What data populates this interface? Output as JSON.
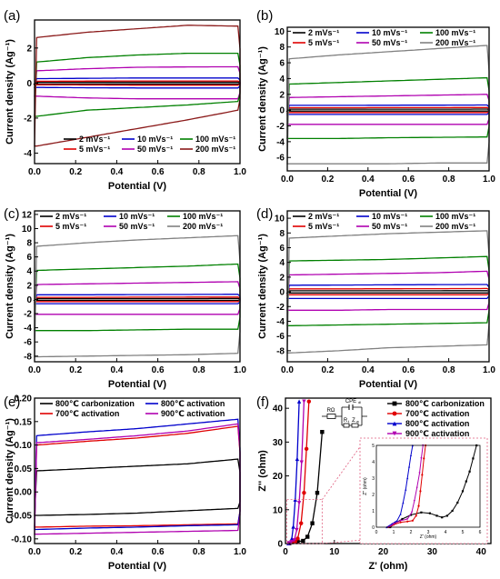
{
  "chart_data": [
    {
      "panel": "(a)",
      "type": "line",
      "xlabel": "Potential (V)",
      "ylabel": "Current density (Ag⁻¹)",
      "xlim": [
        0,
        1
      ],
      "ylim": [
        -4.6,
        3.6
      ],
      "xticks": [
        "0.0",
        "0.2",
        "0.4",
        "0.6",
        "0.8",
        "1.0"
      ],
      "yticks": [
        {
          "v": -4,
          "l": "-4"
        },
        {
          "v": -2,
          "l": "-2"
        },
        {
          "v": 0,
          "l": "0"
        },
        {
          "v": 2,
          "l": "2"
        }
      ],
      "legend_position": "bottom-right",
      "legend_cols": 3,
      "series": [
        {
          "name": "2 mVs⁻¹",
          "color": "#000000",
          "top": [
            0.05,
            0.05,
            0.05,
            0.05,
            0.05
          ],
          "bot": [
            -0.05,
            -0.05,
            -0.05,
            -0.05,
            -0.05
          ]
        },
        {
          "name": "5 mVs⁻¹",
          "color": "#e00000",
          "top": [
            0.1,
            0.11,
            0.12,
            0.12,
            0.12
          ],
          "bot": [
            -0.1,
            -0.11,
            -0.12,
            -0.12,
            -0.12
          ]
        },
        {
          "name": "10 mVs⁻¹",
          "color": "#0000cc",
          "top": [
            0.25,
            0.27,
            0.29,
            0.29,
            0.29
          ],
          "bot": [
            -0.25,
            -0.27,
            -0.28,
            -0.28,
            -0.28
          ]
        },
        {
          "name": "50 mVs⁻¹",
          "color": "#b000b0",
          "top": [
            0.7,
            0.82,
            0.9,
            0.92,
            0.93
          ],
          "bot": [
            -0.75,
            -0.85,
            -0.9,
            -0.9,
            -0.9
          ]
        },
        {
          "name": "100 mVs⁻¹",
          "color": "#008000",
          "top": [
            1.2,
            1.45,
            1.6,
            1.7,
            1.7
          ],
          "bot": [
            -1.9,
            -1.55,
            -1.4,
            -1.25,
            -1.05
          ]
        },
        {
          "name": "200 mVs⁻¹",
          "color": "#8b1a1a",
          "top": [
            2.6,
            2.9,
            3.1,
            3.3,
            3.25
          ],
          "bot": [
            -3.6,
            -3.1,
            -2.6,
            -2.1,
            -1.55
          ]
        }
      ]
    },
    {
      "panel": "(b)",
      "type": "line",
      "xlabel": "Potential (V)",
      "ylabel": "Current density (Ag⁻¹)",
      "xlim": [
        0,
        1
      ],
      "ylim": [
        -7.7,
        10.5
      ],
      "xticks": [
        "0.0",
        "0.2",
        "0.4",
        "0.6",
        "0.8",
        "1.0"
      ],
      "yticks": [
        {
          "v": -6,
          "l": "-6"
        },
        {
          "v": -4,
          "l": "-4"
        },
        {
          "v": -2,
          "l": "-2"
        },
        {
          "v": 0,
          "l": "0"
        },
        {
          "v": 2,
          "l": "2"
        },
        {
          "v": 4,
          "l": "4"
        },
        {
          "v": 6,
          "l": "6"
        },
        {
          "v": 8,
          "l": "8"
        },
        {
          "v": 10,
          "l": "10"
        }
      ],
      "legend_position": "top",
      "legend_cols": 3,
      "series": [
        {
          "name": "2 mVs⁻¹",
          "color": "#000000",
          "top": [
            0.12,
            0.12,
            0.12,
            0.12,
            0.13
          ],
          "bot": [
            -0.12,
            -0.12,
            -0.12,
            -0.12,
            -0.12
          ]
        },
        {
          "name": "5 mVs⁻¹",
          "color": "#e00000",
          "top": [
            0.3,
            0.3,
            0.32,
            0.32,
            0.33
          ],
          "bot": [
            -0.3,
            -0.3,
            -0.3,
            -0.3,
            -0.3
          ]
        },
        {
          "name": "10 mVs⁻¹",
          "color": "#0000cc",
          "top": [
            0.6,
            0.6,
            0.62,
            0.63,
            0.65
          ],
          "bot": [
            -0.55,
            -0.55,
            -0.55,
            -0.55,
            -0.55
          ]
        },
        {
          "name": "50 mVs⁻¹",
          "color": "#b000b0",
          "top": [
            1.6,
            1.7,
            1.8,
            1.9,
            2.0
          ],
          "bot": [
            -1.8,
            -1.8,
            -1.8,
            -1.8,
            -1.8
          ]
        },
        {
          "name": "100 mVs⁻¹",
          "color": "#008000",
          "top": [
            3.3,
            3.5,
            3.7,
            3.9,
            4.1
          ],
          "bot": [
            -3.6,
            -3.6,
            -3.5,
            -3.45,
            -3.4
          ]
        },
        {
          "name": "200 mVs⁻¹",
          "color": "#808080",
          "top": [
            6.5,
            7.0,
            7.4,
            7.8,
            8.2
          ],
          "bot": [
            -6.8,
            -6.8,
            -6.8,
            -6.7,
            -6.7
          ]
        }
      ]
    },
    {
      "panel": "(c)",
      "type": "line",
      "xlabel": "Potential (V)",
      "ylabel": "Current density (Ag⁻¹)",
      "xlim": [
        0,
        1
      ],
      "ylim": [
        -8.8,
        12.5
      ],
      "xticks": [
        "0.0",
        "0.2",
        "0.4",
        "0.6",
        "0.8",
        "1.0"
      ],
      "yticks": [
        {
          "v": -8,
          "l": "-8"
        },
        {
          "v": -6,
          "l": "-6"
        },
        {
          "v": -4,
          "l": "-4"
        },
        {
          "v": -2,
          "l": "-2"
        },
        {
          "v": 0,
          "l": "0"
        },
        {
          "v": 2,
          "l": "2"
        },
        {
          "v": 4,
          "l": "4"
        },
        {
          "v": 6,
          "l": "6"
        },
        {
          "v": 8,
          "l": "8"
        },
        {
          "v": 10,
          "l": "10"
        },
        {
          "v": 12,
          "l": "12"
        }
      ],
      "legend_position": "top",
      "legend_cols": 3,
      "series": [
        {
          "name": "2 mVs⁻¹",
          "color": "#000000",
          "top": [
            0.12,
            0.12,
            0.12,
            0.12,
            0.13
          ],
          "bot": [
            -0.12,
            -0.12,
            -0.12,
            -0.12,
            -0.12
          ]
        },
        {
          "name": "5 mVs⁻¹",
          "color": "#e00000",
          "top": [
            0.3,
            0.3,
            0.32,
            0.33,
            0.33
          ],
          "bot": [
            -0.3,
            -0.3,
            -0.3,
            -0.3,
            -0.3
          ]
        },
        {
          "name": "10 mVs⁻¹",
          "color": "#0000cc",
          "top": [
            0.65,
            0.66,
            0.68,
            0.7,
            0.72
          ],
          "bot": [
            -0.6,
            -0.6,
            -0.6,
            -0.6,
            -0.6
          ]
        },
        {
          "name": "50 mVs⁻¹",
          "color": "#b000b0",
          "top": [
            2.1,
            2.2,
            2.3,
            2.4,
            2.5
          ],
          "bot": [
            -2.1,
            -2.1,
            -2.1,
            -2.1,
            -2.1
          ]
        },
        {
          "name": "100 mVs⁻¹",
          "color": "#008000",
          "top": [
            4.1,
            4.3,
            4.5,
            4.7,
            5.0
          ],
          "bot": [
            -4.4,
            -4.4,
            -4.3,
            -4.2,
            -4.2
          ]
        },
        {
          "name": "200 mVs⁻¹",
          "color": "#808080",
          "top": [
            7.5,
            8.0,
            8.4,
            8.7,
            9.0
          ],
          "bot": [
            -8.1,
            -8.0,
            -7.9,
            -7.8,
            -7.6
          ]
        }
      ]
    },
    {
      "panel": "(d)",
      "type": "line",
      "xlabel": "Potential (V)",
      "ylabel": "Current density (Ag⁻¹)",
      "xlim": [
        0,
        1
      ],
      "ylim": [
        -9.5,
        11
      ],
      "xticks": [
        "0.0",
        "0.2",
        "0.4",
        "0.6",
        "0.8",
        "1.0"
      ],
      "yticks": [
        {
          "v": -8,
          "l": "-8"
        },
        {
          "v": -6,
          "l": "-6"
        },
        {
          "v": -4,
          "l": "-4"
        },
        {
          "v": -2,
          "l": "-2"
        },
        {
          "v": 0,
          "l": "0"
        },
        {
          "v": 2,
          "l": "2"
        },
        {
          "v": 4,
          "l": "4"
        },
        {
          "v": 6,
          "l": "6"
        },
        {
          "v": 8,
          "l": "8"
        },
        {
          "v": 10,
          "l": "10"
        }
      ],
      "legend_position": "top",
      "legend_cols": 3,
      "series": [
        {
          "name": "2 mVs⁻¹",
          "color": "#000000",
          "top": [
            0.15,
            0.15,
            0.15,
            0.15,
            0.16
          ],
          "bot": [
            -0.15,
            -0.15,
            -0.15,
            -0.15,
            -0.15
          ]
        },
        {
          "name": "5 mVs⁻¹",
          "color": "#e00000",
          "top": [
            0.4,
            0.4,
            0.42,
            0.43,
            0.45
          ],
          "bot": [
            -0.4,
            -0.4,
            -0.4,
            -0.4,
            -0.4
          ]
        },
        {
          "name": "10 mVs⁻¹",
          "color": "#0000cc",
          "top": [
            0.9,
            0.92,
            0.95,
            0.98,
            1.0
          ],
          "bot": [
            -0.9,
            -0.9,
            -0.9,
            -0.9,
            -0.9
          ]
        },
        {
          "name": "50 mVs⁻¹",
          "color": "#b000b0",
          "top": [
            2.3,
            2.4,
            2.5,
            2.6,
            2.8
          ],
          "bot": [
            -2.5,
            -2.5,
            -2.4,
            -2.4,
            -2.4
          ]
        },
        {
          "name": "100 mVs⁻¹",
          "color": "#008000",
          "top": [
            4.2,
            4.3,
            4.4,
            4.6,
            4.8
          ],
          "bot": [
            -4.6,
            -4.5,
            -4.4,
            -4.3,
            -4.2
          ]
        },
        {
          "name": "200 mVs⁻¹",
          "color": "#808080",
          "top": [
            7.3,
            7.6,
            7.9,
            8.1,
            8.3
          ],
          "bot": [
            -8.3,
            -8.0,
            -7.6,
            -7.4,
            -7.2
          ]
        }
      ]
    },
    {
      "panel": "(e)",
      "type": "line",
      "xlabel": "Potential (V)",
      "ylabel": "Current density (Ag⁻¹)",
      "xlim": [
        0,
        1
      ],
      "ylim": [
        -0.11,
        0.2
      ],
      "xticks": [
        "0.0",
        "0.2",
        "0.4",
        "0.6",
        "0.8",
        "1.0"
      ],
      "yticks": [
        {
          "v": -0.1,
          "l": "-0.10"
        },
        {
          "v": -0.05,
          "l": "-0.05"
        },
        {
          "v": 0,
          "l": "0.00"
        },
        {
          "v": 0.05,
          "l": "0.05"
        },
        {
          "v": 0.1,
          "l": "0.10"
        },
        {
          "v": 0.15,
          "l": "0.15"
        },
        {
          "v": 0.2,
          "l": "0.20"
        }
      ],
      "legend_position": "top",
      "legend_cols": 2,
      "series": [
        {
          "name": "800℃ carbonization",
          "color": "#000000",
          "top": [
            0.045,
            0.05,
            0.055,
            0.06,
            0.07
          ],
          "bot": [
            -0.05,
            -0.048,
            -0.045,
            -0.04,
            -0.035
          ]
        },
        {
          "name": "700℃ activation",
          "color": "#e00000",
          "top": [
            0.1,
            0.108,
            0.115,
            0.125,
            0.14
          ],
          "bot": [
            -0.075,
            -0.073,
            -0.072,
            -0.07,
            -0.068
          ]
        },
        {
          "name": "800℃ activation",
          "color": "#0000cc",
          "top": [
            0.12,
            0.128,
            0.135,
            0.145,
            0.155
          ],
          "bot": [
            -0.08,
            -0.077,
            -0.075,
            -0.072,
            -0.07
          ]
        },
        {
          "name": "900℃ activation",
          "color": "#b000b0",
          "top": [
            0.105,
            0.112,
            0.12,
            0.13,
            0.145
          ],
          "bot": [
            -0.09,
            -0.088,
            -0.086,
            -0.084,
            -0.082
          ]
        }
      ]
    },
    {
      "panel": "(f)",
      "type": "line",
      "xlabel": "Z' (ohm)",
      "ylabel": "Z'' (ohm)",
      "xlim": [
        0,
        42
      ],
      "ylim": [
        0,
        43
      ],
      "xticks": [
        "0",
        "10",
        "20",
        "30",
        "40"
      ],
      "yticks": [
        {
          "v": 0,
          "l": "0"
        },
        {
          "v": 10,
          "l": "10"
        },
        {
          "v": 20,
          "l": "20"
        },
        {
          "v": 30,
          "l": "30"
        },
        {
          "v": 40,
          "l": "40"
        }
      ],
      "legend_position": "top-right",
      "series": [
        {
          "name": "800℃ carbonization",
          "color": "#000000",
          "marker": "square",
          "x": [
            0.8,
            1.5,
            2.5,
            3.6,
            4.5,
            5.5,
            6.5,
            7.5
          ],
          "y": [
            0.1,
            0.5,
            0.6,
            0.8,
            2.0,
            6.0,
            15.0,
            33.0
          ]
        },
        {
          "name": "700℃ activation",
          "color": "#e00000",
          "marker": "circle",
          "x": [
            0.7,
            1.4,
            2.0,
            2.5,
            3.2,
            3.8,
            4.3,
            4.8
          ],
          "y": [
            0.1,
            0.4,
            0.5,
            1.5,
            6.0,
            15.0,
            28.0,
            42.0
          ]
        },
        {
          "name": "800℃ activation",
          "color": "#0000cc",
          "marker": "triangle",
          "x": [
            0.6,
            1.0,
            1.3,
            1.6,
            2.0,
            2.4,
            2.8
          ],
          "y": [
            0.1,
            0.4,
            1.5,
            5.0,
            13.0,
            25.0,
            42.0
          ]
        },
        {
          "name": "900℃ activation",
          "color": "#b000b0",
          "marker": "triangle-down",
          "x": [
            0.7,
            1.2,
            1.8,
            2.3,
            2.8,
            3.3,
            3.8
          ],
          "y": [
            0.1,
            0.5,
            1.0,
            4.0,
            12.0,
            24.0,
            42.0
          ]
        }
      ],
      "circuit_labels": {
        "rs": "RΩ",
        "cpe": "CPE",
        "cpe_sub": "dl",
        "rt": "R",
        "rt_sub": "t",
        "zw": "Z",
        "zw_sub": "w"
      },
      "inset": {
        "xlabel": "Z' (ohm)",
        "ylabel": "Z'' (ohm)",
        "xlim": [
          0,
          6
        ],
        "ylim": [
          0,
          5
        ],
        "xticks": [
          "0",
          "1",
          "2",
          "3",
          "4",
          "5",
          "6"
        ],
        "yticks": [
          {
            "v": 0,
            "l": "0"
          },
          {
            "v": 1,
            "l": "1"
          },
          {
            "v": 2,
            "l": "2"
          },
          {
            "v": 3,
            "l": "3"
          },
          {
            "v": 4,
            "l": "4"
          },
          {
            "v": 5,
            "l": "5"
          }
        ],
        "series": [
          {
            "color": "#000000",
            "x": [
              0.8,
              1.1,
              1.5,
              2.0,
              2.6,
              3.1,
              3.5,
              3.8,
              4.1,
              4.4,
              4.7,
              5.0,
              5.2,
              5.4,
              5.6,
              5.8
            ],
            "y": [
              0.0,
              0.25,
              0.5,
              0.75,
              0.9,
              0.85,
              0.7,
              0.6,
              0.7,
              1.0,
              1.5,
              2.2,
              2.8,
              3.4,
              4.2,
              5.0
            ]
          },
          {
            "color": "#e00000",
            "x": [
              0.7,
              1.0,
              1.4,
              1.8,
              2.1,
              2.3,
              2.45,
              2.55,
              2.65,
              2.75,
              2.85
            ],
            "y": [
              0.0,
              0.15,
              0.3,
              0.35,
              0.4,
              0.7,
              1.3,
              2.2,
              3.2,
              4.2,
              5.0
            ]
          },
          {
            "color": "#0000cc",
            "x": [
              0.6,
              0.9,
              1.2,
              1.4,
              1.55,
              1.7,
              1.8,
              1.9,
              2.0,
              2.1
            ],
            "y": [
              0.0,
              0.2,
              0.4,
              0.8,
              1.5,
              2.3,
              3.0,
              3.7,
              4.4,
              5.0
            ]
          },
          {
            "color": "#b000b0",
            "x": [
              0.7,
              1.0,
              1.4,
              1.8,
              2.05,
              2.2,
              2.35,
              2.5,
              2.6,
              2.7
            ],
            "y": [
              0.0,
              0.2,
              0.4,
              0.5,
              0.9,
              1.6,
              2.4,
              3.3,
              4.2,
              5.0
            ]
          }
        ]
      }
    }
  ]
}
